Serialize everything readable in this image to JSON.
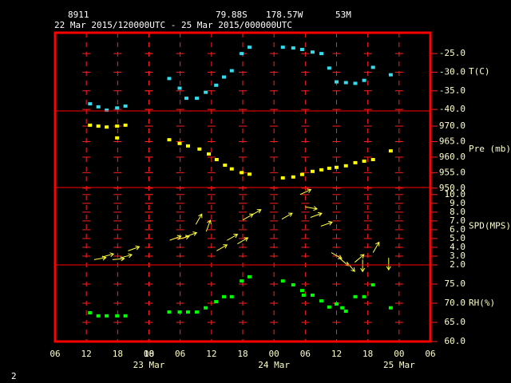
{
  "header": {
    "station": "8911",
    "lat": "79.88S",
    "lon": "178.57W",
    "elev": "53M",
    "period": "22 Mar 2015/120000UTC - 25 Mar 2015/000000UTC",
    "page": "2"
  },
  "x_axis": {
    "xlim": [
      0,
      72
    ],
    "xticks": [
      {
        "value": 0,
        "label": "06"
      },
      {
        "value": 6,
        "label": "12"
      },
      18,
      {
        "value": 12,
        "label": "18"
      },
      {
        "value": 18,
        "label": "00"
      },
      {
        "value": 24,
        "label": "06"
      },
      {
        "value": 30,
        "label": "12"
      },
      {
        "value": 36,
        "label": "18"
      },
      {
        "value": 42,
        "label": "00"
      },
      {
        "value": 48,
        "label": "06"
      },
      {
        "value": 54,
        "label": "12"
      },
      {
        "value": 60,
        "label": "18"
      },
      {
        "value": 66,
        "label": "00"
      },
      {
        "value": 72,
        "label": "06"
      }
    ],
    "date_labels": [
      {
        "value": 18,
        "label": "23 Mar"
      },
      {
        "value": 42,
        "label": "24 Mar"
      },
      {
        "value": 66,
        "label": "25 Mar"
      }
    ]
  },
  "chart_data": [
    {
      "type": "scatter",
      "ylabel": "T(C)",
      "ylim": [
        -40.4,
        -19.4
      ],
      "yticks": [
        {
          "value": -25,
          "label": "-25.0"
        },
        {
          "value": -30,
          "label": "-30.0"
        },
        {
          "value": -35,
          "label": "-35.0"
        },
        {
          "value": -40,
          "label": "-40.0"
        }
      ],
      "series": [
        {
          "color": "#33ddee",
          "x": [
            6.7,
            8.3,
            9.9,
            11.9,
            13.5,
            21.9,
            23.9,
            25.2,
            27.2,
            28.9,
            30.9,
            32.4,
            33.9,
            35.8,
            37.3,
            43.7,
            45.7,
            47.4,
            49.4,
            51.1,
            52.6,
            54,
            55.8,
            57.6,
            59.3,
            61,
            64.4
          ],
          "values": [
            -38.5,
            -39.3,
            -40.2,
            -39.6,
            -39.1,
            -31.7,
            -34.3,
            -37,
            -37,
            -35.4,
            -33.5,
            -31.3,
            -29.6,
            -25,
            -23.3,
            -23.3,
            -23.5,
            -23.9,
            -24.6,
            -25,
            -28.9,
            -32.6,
            -32.8,
            -33,
            -32.2,
            -28.7,
            -30.7
          ]
        }
      ]
    },
    {
      "type": "scatter",
      "ylabel": "Pre (mb)",
      "ylim": [
        950.2,
        974.9
      ],
      "yticks": [
        {
          "value": 970,
          "label": "970.0"
        },
        {
          "value": 965,
          "label": "965.0"
        },
        {
          "value": 960,
          "label": "960.0"
        },
        {
          "value": 955,
          "label": "955.0"
        },
        {
          "value": 950,
          "label": "950.0"
        }
      ],
      "series": [
        {
          "color": "#ffff00",
          "x": [
            6.7,
            8.3,
            9.9,
            11.9,
            13.5,
            11.9,
            21.9,
            23.9,
            25.5,
            27.7,
            29.5,
            31,
            32.6,
            33.9,
            35.8,
            37.3,
            43.7,
            45.7,
            47.4,
            49.4,
            51.1,
            52.6,
            54,
            55.8,
            57.6,
            59.3,
            61,
            64.4
          ],
          "values": [
            970.3,
            970,
            969.7,
            970,
            970.3,
            966.2,
            965.6,
            964.4,
            963.6,
            962.6,
            961,
            959.2,
            957.4,
            956.2,
            955,
            954.5,
            953.3,
            953.6,
            954.4,
            955.4,
            955.9,
            956.4,
            956.7,
            957.2,
            958.2,
            958.7,
            959.2,
            962
          ]
        }
      ]
    },
    {
      "type": "wind",
      "ylabel": "SPD(MPS)",
      "ylim": [
        2.0,
        10.8
      ],
      "yticks": [
        {
          "value": 10,
          "label": "10.0"
        },
        {
          "value": 9,
          "label": "9.0"
        },
        {
          "value": 8,
          "label": "8.0"
        },
        {
          "value": 7,
          "label": "7.0"
        },
        {
          "value": 6,
          "label": "6.0"
        },
        {
          "value": 5,
          "label": "5.0"
        },
        {
          "value": 4,
          "label": "4.0"
        },
        {
          "value": 3,
          "label": "3.0"
        },
        {
          "value": 2,
          "label": "2.0"
        }
      ],
      "series": [
        {
          "color": "#ffff40",
          "x": [
            7.5,
            9,
            11,
            12.5,
            14,
            22,
            23.5,
            25,
            27,
            29,
            31,
            33,
            35,
            36,
            37.5,
            43.5,
            47,
            48,
            49,
            51,
            53,
            54.5,
            56,
            57.5,
            59,
            61,
            64
          ],
          "values": [
            2.6,
            2.9,
            2.6,
            2.8,
            3.6,
            4.8,
            4.9,
            5.2,
            6.6,
            5.8,
            3.6,
            4.8,
            4.4,
            7.1,
            7.6,
            7.2,
            10,
            8.6,
            7.4,
            6.4,
            3.4,
            2.8,
            2.3,
            2.3,
            2.6,
            3.4,
            2.8
          ],
          "directions": [
            -10,
            -15,
            -5,
            -15,
            -20,
            -20,
            -15,
            -20,
            -60,
            -70,
            -30,
            -30,
            -30,
            -30,
            -30,
            -30,
            -25,
            10,
            -20,
            -20,
            30,
            40,
            50,
            -40,
            90,
            -60,
            90
          ]
        }
      ]
    },
    {
      "type": "scatter",
      "ylabel": "RH(%)",
      "ylim": [
        60,
        80
      ],
      "yticks": [
        {
          "value": 75,
          "label": "75.0"
        },
        {
          "value": 70,
          "label": "70.0"
        },
        {
          "value": 65,
          "label": "65.0"
        },
        {
          "value": 60,
          "label": "60.0"
        }
      ],
      "series": [
        {
          "color": "#00ff00",
          "x": [
            6.7,
            8.3,
            9.9,
            11.9,
            13.5,
            21.9,
            23.9,
            25.5,
            27.2,
            28.9,
            30.9,
            32.4,
            33.9,
            35.8,
            37.3,
            43.7,
            45.7,
            47.4,
            47.7,
            49.4,
            51.1,
            52.6,
            54,
            55.1,
            55.8,
            57.6,
            59.3,
            61,
            64.4
          ],
          "values": [
            67.5,
            66.7,
            66.7,
            66.7,
            66.7,
            67.7,
            67.7,
            67.7,
            67.7,
            68.8,
            70.4,
            71.7,
            71.7,
            75.8,
            76.9,
            75.8,
            74.8,
            73.3,
            72.1,
            72.1,
            70.6,
            69,
            69.8,
            68.8,
            67.9,
            71.7,
            71.7,
            74.8,
            68.8
          ]
        }
      ]
    }
  ]
}
